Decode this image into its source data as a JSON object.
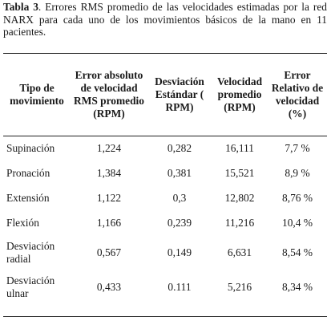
{
  "caption": {
    "label": "Tabla 3",
    "text": ". Errores RMS promedio de las velocidades estimadas por la red NARX para cada uno de los movimientos básicos de la mano en 11 pacientes."
  },
  "table": {
    "headers": [
      "Tipo de movimiento",
      "Error absoluto de velocidad RMS promedio (RPM)",
      "Desviación Estándar ( RPM)",
      "Velocidad promedio (RPM)",
      "Error Relativo de velocidad (%)"
    ],
    "rows": [
      [
        "Supinación",
        "1,224",
        "0,282",
        "16,111",
        "7,7  %"
      ],
      [
        "Pronación",
        "1,384",
        "0,381",
        "15,521",
        "8,9  %"
      ],
      [
        "Extensión",
        "1,122",
        "0,3",
        "12,802",
        "8,76 %"
      ],
      [
        "Flexión",
        "1,166",
        "0,239",
        "11,216",
        "10,4  %"
      ],
      [
        "Desviación radial",
        "0,567",
        "0,149",
        "6,631",
        "8,54  %"
      ],
      [
        "Desviación ulnar",
        "0,433",
        "0.111",
        "5,216",
        "8,34 %"
      ]
    ]
  }
}
